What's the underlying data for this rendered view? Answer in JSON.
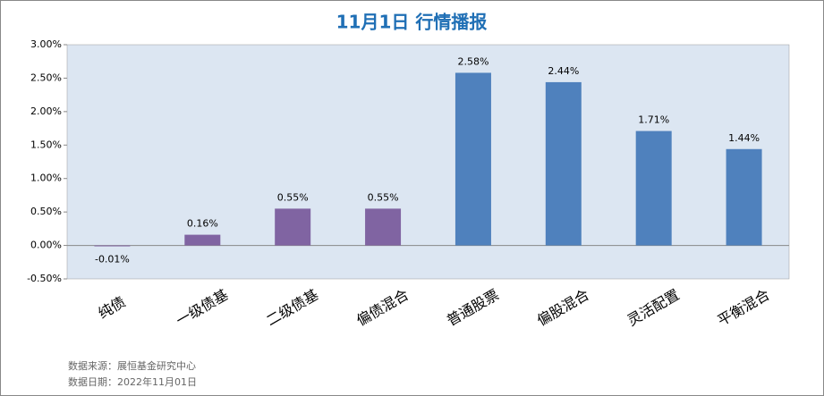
{
  "chart_data": {
    "type": "bar",
    "title": "11月1日 行情播报",
    "categories": [
      "纯债",
      "一级债基",
      "二级债基",
      "偏债混合",
      "普通股票",
      "偏股混合",
      "灵活配置",
      "平衡混合"
    ],
    "values": [
      -0.01,
      0.16,
      0.55,
      0.55,
      2.58,
      2.44,
      1.71,
      1.44
    ],
    "value_labels": [
      "-0.01%",
      "0.16%",
      "0.55%",
      "0.55%",
      "2.58%",
      "2.44%",
      "1.71%",
      "1.44%"
    ],
    "colors": [
      "#8064a2",
      "#8064a2",
      "#8064a2",
      "#8064a2",
      "#4f81bd",
      "#4f81bd",
      "#4f81bd",
      "#4f81bd"
    ],
    "ylim": [
      -0.5,
      3.0
    ],
    "yticks": [
      {
        "value": -0.5,
        "label": "-0.50%"
      },
      {
        "value": 0,
        "label": "0.00%"
      },
      {
        "value": 0.5,
        "label": "0.50%"
      },
      {
        "value": 1.0,
        "label": "1.00%"
      },
      {
        "value": 1.5,
        "label": "1.50%"
      },
      {
        "value": 2.0,
        "label": "2.00%"
      },
      {
        "value": 2.5,
        "label": "2.50%"
      },
      {
        "value": 3.0,
        "label": "3.00%"
      }
    ],
    "notes": [
      "数据来源：展恒基金研究中心",
      "数据日期：2022年11月01日"
    ]
  }
}
